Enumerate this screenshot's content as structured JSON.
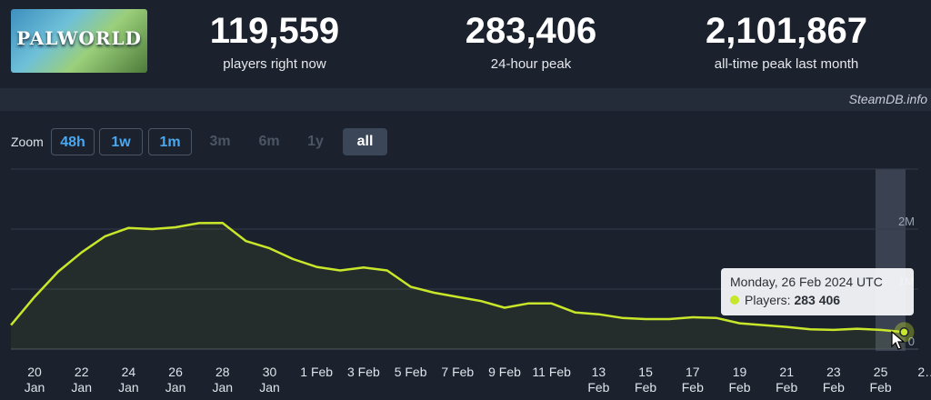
{
  "header": {
    "logo_text": "PALWORLD",
    "stats": [
      {
        "value": "119,559",
        "label": "players right now"
      },
      {
        "value": "283,406",
        "label": "24-hour peak"
      },
      {
        "value": "2,101,867",
        "label": "all-time peak last month"
      }
    ],
    "credit": "SteamDB.info"
  },
  "zoom": {
    "label": "Zoom",
    "buttons": [
      {
        "label": "48h",
        "state": "enabled"
      },
      {
        "label": "1w",
        "state": "enabled"
      },
      {
        "label": "1m",
        "state": "enabled"
      },
      {
        "label": "3m",
        "state": "disabled"
      },
      {
        "label": "6m",
        "state": "disabled"
      },
      {
        "label": "1y",
        "state": "disabled"
      },
      {
        "label": "all",
        "state": "selected"
      }
    ]
  },
  "tooltip": {
    "date": "Monday, 26 Feb 2024 UTC",
    "series_label": "Players:",
    "value": "283 406"
  },
  "chart_data": {
    "type": "area",
    "xlabel": "",
    "ylabel": "",
    "y_ticks": [
      {
        "value": 0,
        "label": "0"
      },
      {
        "value": 1000000,
        "label": "1M"
      },
      {
        "value": 2000000,
        "label": "2M"
      }
    ],
    "ylim": [
      0,
      2600000
    ],
    "x_ticks": [
      {
        "date": "2024-01-20",
        "label": "20",
        "month": "Jan"
      },
      {
        "date": "2024-01-22",
        "label": "22",
        "month": "Jan"
      },
      {
        "date": "2024-01-24",
        "label": "24",
        "month": "Jan"
      },
      {
        "date": "2024-01-26",
        "label": "26",
        "month": "Jan"
      },
      {
        "date": "2024-01-28",
        "label": "28",
        "month": "Jan"
      },
      {
        "date": "2024-01-30",
        "label": "30",
        "month": "Jan"
      },
      {
        "date": "2024-02-01",
        "label": "1 Feb",
        "month": ""
      },
      {
        "date": "2024-02-03",
        "label": "3 Feb",
        "month": ""
      },
      {
        "date": "2024-02-05",
        "label": "5 Feb",
        "month": ""
      },
      {
        "date": "2024-02-07",
        "label": "7 Feb",
        "month": ""
      },
      {
        "date": "2024-02-09",
        "label": "9 Feb",
        "month": ""
      },
      {
        "date": "2024-02-11",
        "label": "11 Feb",
        "month": ""
      },
      {
        "date": "2024-02-13",
        "label": "13",
        "month": "Feb"
      },
      {
        "date": "2024-02-15",
        "label": "15",
        "month": "Feb"
      },
      {
        "date": "2024-02-17",
        "label": "17",
        "month": "Feb"
      },
      {
        "date": "2024-02-19",
        "label": "19",
        "month": "Feb"
      },
      {
        "date": "2024-02-21",
        "label": "21",
        "month": "Feb"
      },
      {
        "date": "2024-02-23",
        "label": "23",
        "month": "Feb"
      },
      {
        "date": "2024-02-25",
        "label": "25",
        "month": "Feb"
      },
      {
        "date": "2024-02-27",
        "label": "2…",
        "month": ""
      }
    ],
    "series": [
      {
        "color": "#c8e62a",
        "points": [
          [
            "2024-01-19",
            400000
          ],
          [
            "2024-01-20",
            870000
          ],
          [
            "2024-01-21",
            1290000
          ],
          [
            "2024-01-22",
            1610000
          ],
          [
            "2024-01-23",
            1880000
          ],
          [
            "2024-01-24",
            2020000
          ],
          [
            "2024-01-25",
            2000000
          ],
          [
            "2024-01-26",
            2030000
          ],
          [
            "2024-01-27",
            2100000
          ],
          [
            "2024-01-28",
            2101867
          ],
          [
            "2024-01-29",
            1800000
          ],
          [
            "2024-01-30",
            1680000
          ],
          [
            "2024-01-31",
            1500000
          ],
          [
            "2024-02-01",
            1370000
          ],
          [
            "2024-02-02",
            1310000
          ],
          [
            "2024-02-03",
            1360000
          ],
          [
            "2024-02-04",
            1310000
          ],
          [
            "2024-02-05",
            1040000
          ],
          [
            "2024-02-06",
            940000
          ],
          [
            "2024-02-07",
            870000
          ],
          [
            "2024-02-08",
            800000
          ],
          [
            "2024-02-09",
            690000
          ],
          [
            "2024-02-10",
            760000
          ],
          [
            "2024-02-11",
            760000
          ],
          [
            "2024-02-12",
            610000
          ],
          [
            "2024-02-13",
            580000
          ],
          [
            "2024-02-14",
            520000
          ],
          [
            "2024-02-15",
            500000
          ],
          [
            "2024-02-16",
            500000
          ],
          [
            "2024-02-17",
            530000
          ],
          [
            "2024-02-18",
            520000
          ],
          [
            "2024-02-19",
            430000
          ],
          [
            "2024-02-20",
            400000
          ],
          [
            "2024-02-21",
            370000
          ],
          [
            "2024-02-22",
            330000
          ],
          [
            "2024-02-23",
            320000
          ],
          [
            "2024-02-24",
            340000
          ],
          [
            "2024-02-25",
            320000
          ],
          [
            "2024-02-26",
            283406
          ]
        ]
      }
    ],
    "highlight": {
      "date": "2024-02-26",
      "value": 283406
    },
    "grid": true
  }
}
